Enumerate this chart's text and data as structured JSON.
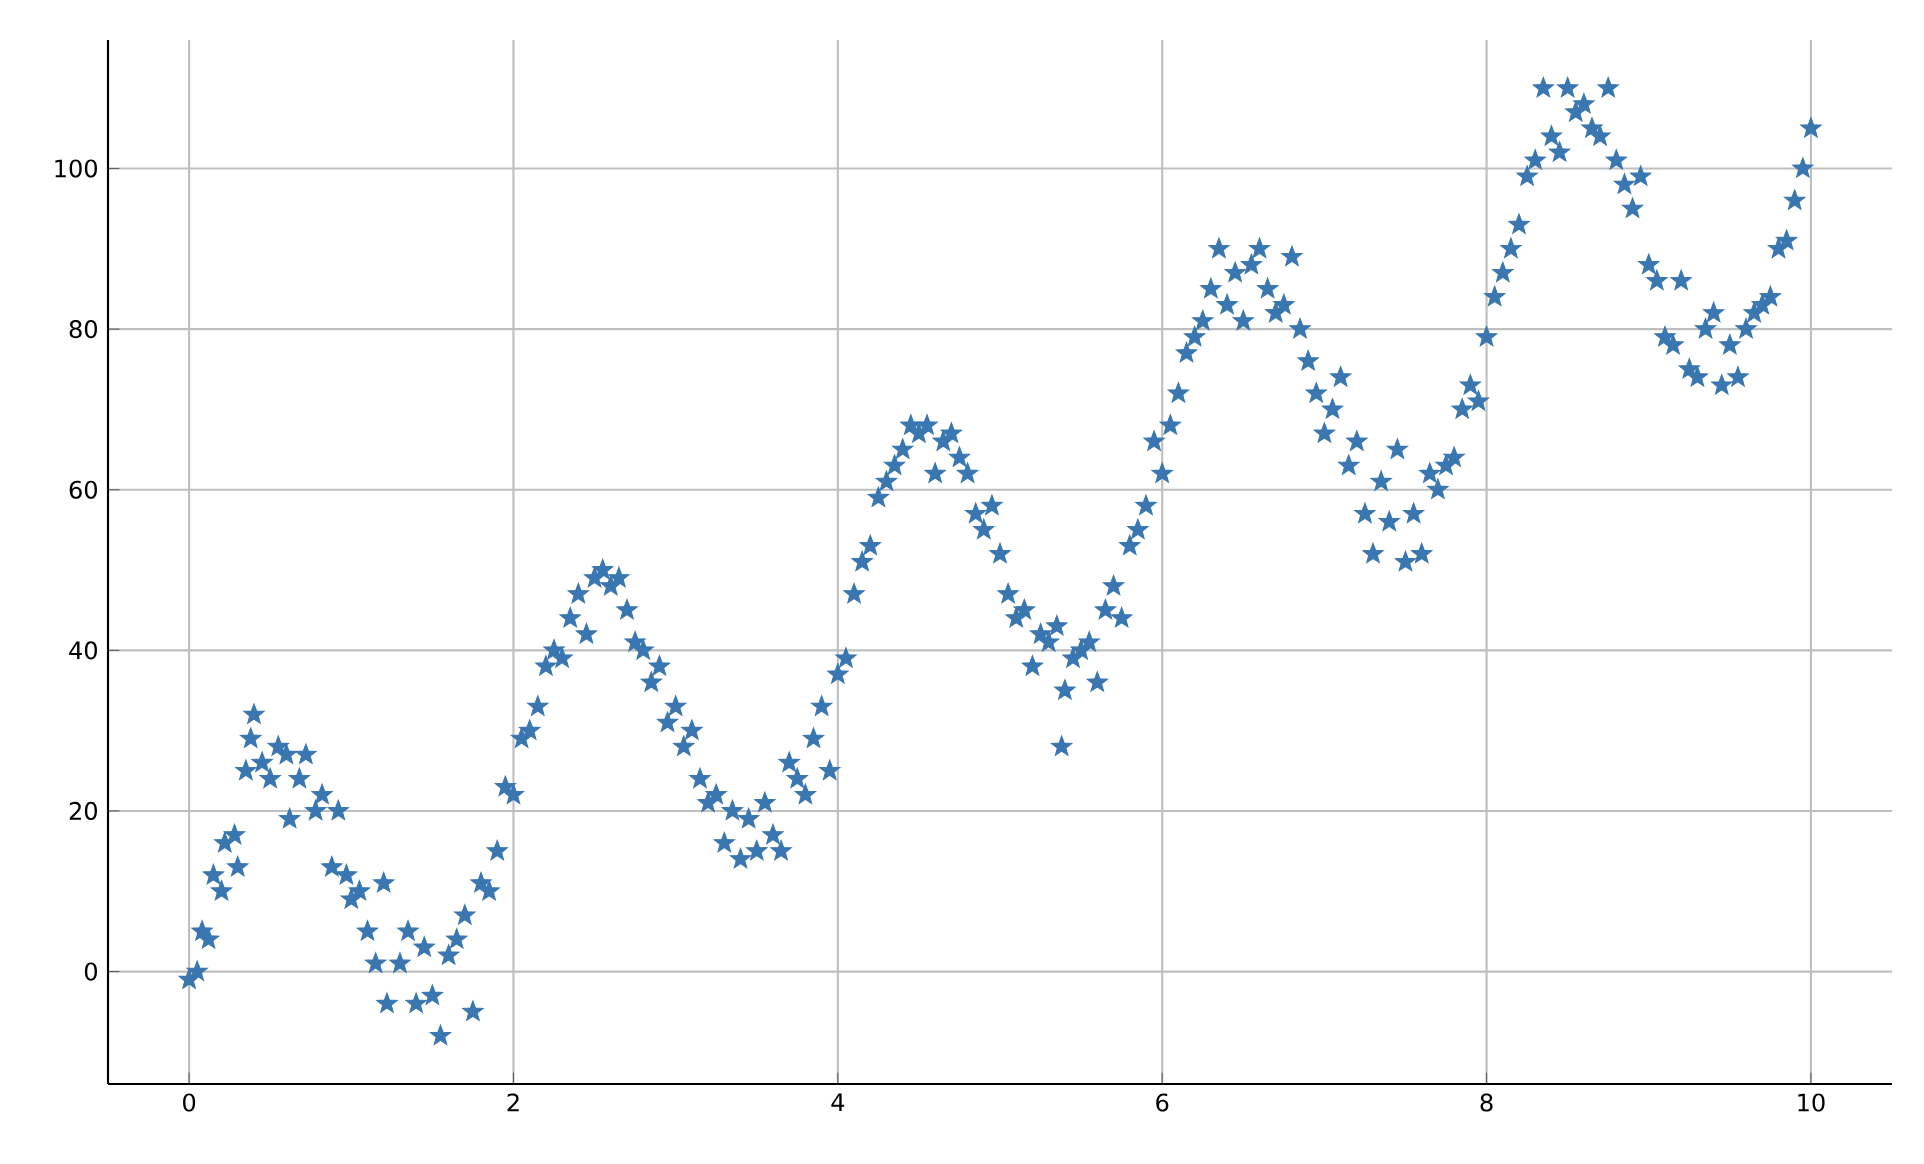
{
  "chart_data": {
    "type": "scatter",
    "marker": "star",
    "grid": true,
    "color": "#3a76af",
    "xlim": [
      -0.5,
      10.5
    ],
    "ylim": [
      -14,
      116
    ],
    "xticks": [
      0,
      2,
      4,
      6,
      8,
      10
    ],
    "yticks": [
      0,
      20,
      40,
      60,
      80,
      100
    ],
    "x": [
      0,
      0.05,
      0.08,
      0.12,
      0.15,
      0.2,
      0.22,
      0.28,
      0.3,
      0.35,
      0.38,
      0.4,
      0.45,
      0.5,
      0.55,
      0.6,
      0.62,
      0.68,
      0.72,
      0.78,
      0.82,
      0.88,
      0.92,
      0.97,
      1.0,
      1.05,
      1.1,
      1.15,
      1.2,
      1.22,
      1.3,
      1.35,
      1.4,
      1.45,
      1.5,
      1.55,
      1.6,
      1.65,
      1.7,
      1.75,
      1.8,
      1.85,
      1.9,
      1.95,
      2.0,
      2.05,
      2.1,
      2.15,
      2.2,
      2.25,
      2.3,
      2.35,
      2.4,
      2.45,
      2.5,
      2.55,
      2.6,
      2.65,
      2.7,
      2.75,
      2.8,
      2.85,
      2.9,
      2.95,
      3.0,
      3.05,
      3.1,
      3.15,
      3.2,
      3.25,
      3.3,
      3.35,
      3.4,
      3.45,
      3.5,
      3.55,
      3.6,
      3.65,
      3.7,
      3.75,
      3.8,
      3.85,
      3.9,
      3.95,
      4.0,
      4.05,
      4.1,
      4.15,
      4.2,
      4.25,
      4.3,
      4.35,
      4.4,
      4.45,
      4.5,
      4.55,
      4.6,
      4.65,
      4.7,
      4.75,
      4.8,
      4.85,
      4.9,
      4.95,
      5.0,
      5.05,
      5.1,
      5.15,
      5.2,
      5.25,
      5.3,
      5.35,
      5.38,
      5.4,
      5.45,
      5.5,
      5.55,
      5.6,
      5.65,
      5.7,
      5.75,
      5.8,
      5.85,
      5.9,
      5.95,
      6.0,
      6.05,
      6.1,
      6.15,
      6.2,
      6.25,
      6.3,
      6.35,
      6.4,
      6.45,
      6.5,
      6.55,
      6.6,
      6.65,
      6.7,
      6.75,
      6.8,
      6.85,
      6.9,
      6.95,
      7.0,
      7.05,
      7.1,
      7.15,
      7.2,
      7.25,
      7.3,
      7.35,
      7.4,
      7.45,
      7.5,
      7.55,
      7.6,
      7.65,
      7.7,
      7.75,
      7.8,
      7.85,
      7.9,
      7.95,
      8.0,
      8.05,
      8.1,
      8.15,
      8.2,
      8.25,
      8.3,
      8.35,
      8.4,
      8.45,
      8.5,
      8.55,
      8.6,
      8.65,
      8.7,
      8.75,
      8.8,
      8.85,
      8.9,
      8.95,
      9.0,
      9.05,
      9.1,
      9.15,
      9.2,
      9.25,
      9.3,
      9.35,
      9.4,
      9.45,
      9.5,
      9.55,
      9.6,
      9.65,
      9.7,
      9.75,
      9.8,
      9.85,
      9.9,
      9.95,
      10.0
    ],
    "values": [
      -1,
      0,
      5,
      4,
      12,
      10,
      16,
      17,
      13,
      25,
      29,
      32,
      26,
      24,
      28,
      27,
      19,
      24,
      27,
      20,
      22,
      13,
      20,
      12,
      9,
      10,
      5,
      1,
      11,
      -4,
      1,
      5,
      -4,
      3,
      -3,
      -8,
      2,
      4,
      7,
      -5,
      11,
      10,
      15,
      23,
      22,
      29,
      30,
      33,
      38,
      40,
      39,
      44,
      47,
      42,
      49,
      50,
      48,
      49,
      45,
      41,
      40,
      36,
      38,
      31,
      33,
      28,
      30,
      24,
      21,
      22,
      16,
      20,
      14,
      19,
      15,
      21,
      17,
      15,
      26,
      24,
      22,
      29,
      33,
      25,
      37,
      39,
      47,
      51,
      53,
      59,
      61,
      63,
      65,
      68,
      67,
      68,
      62,
      66,
      67,
      64,
      62,
      57,
      55,
      58,
      52,
      47,
      44,
      45,
      38,
      42,
      41,
      43,
      28,
      35,
      39,
      40,
      41,
      36,
      45,
      48,
      44,
      53,
      55,
      58,
      66,
      62,
      68,
      72,
      77,
      79,
      81,
      85,
      90,
      83,
      87,
      81,
      88,
      90,
      85,
      82,
      83,
      89,
      80,
      76,
      72,
      67,
      70,
      74,
      63,
      66,
      57,
      52,
      61,
      56,
      65,
      51,
      57,
      52,
      62,
      60,
      63,
      64,
      70,
      73,
      71,
      79,
      84,
      87,
      90,
      93,
      99,
      101,
      110,
      104,
      102,
      110,
      107,
      108,
      105,
      104,
      110,
      101,
      98,
      95,
      99,
      88,
      86,
      79,
      78,
      86,
      75,
      74,
      80,
      82,
      73,
      78,
      74,
      80,
      82,
      83,
      84,
      90,
      91,
      96,
      100,
      105
    ]
  }
}
